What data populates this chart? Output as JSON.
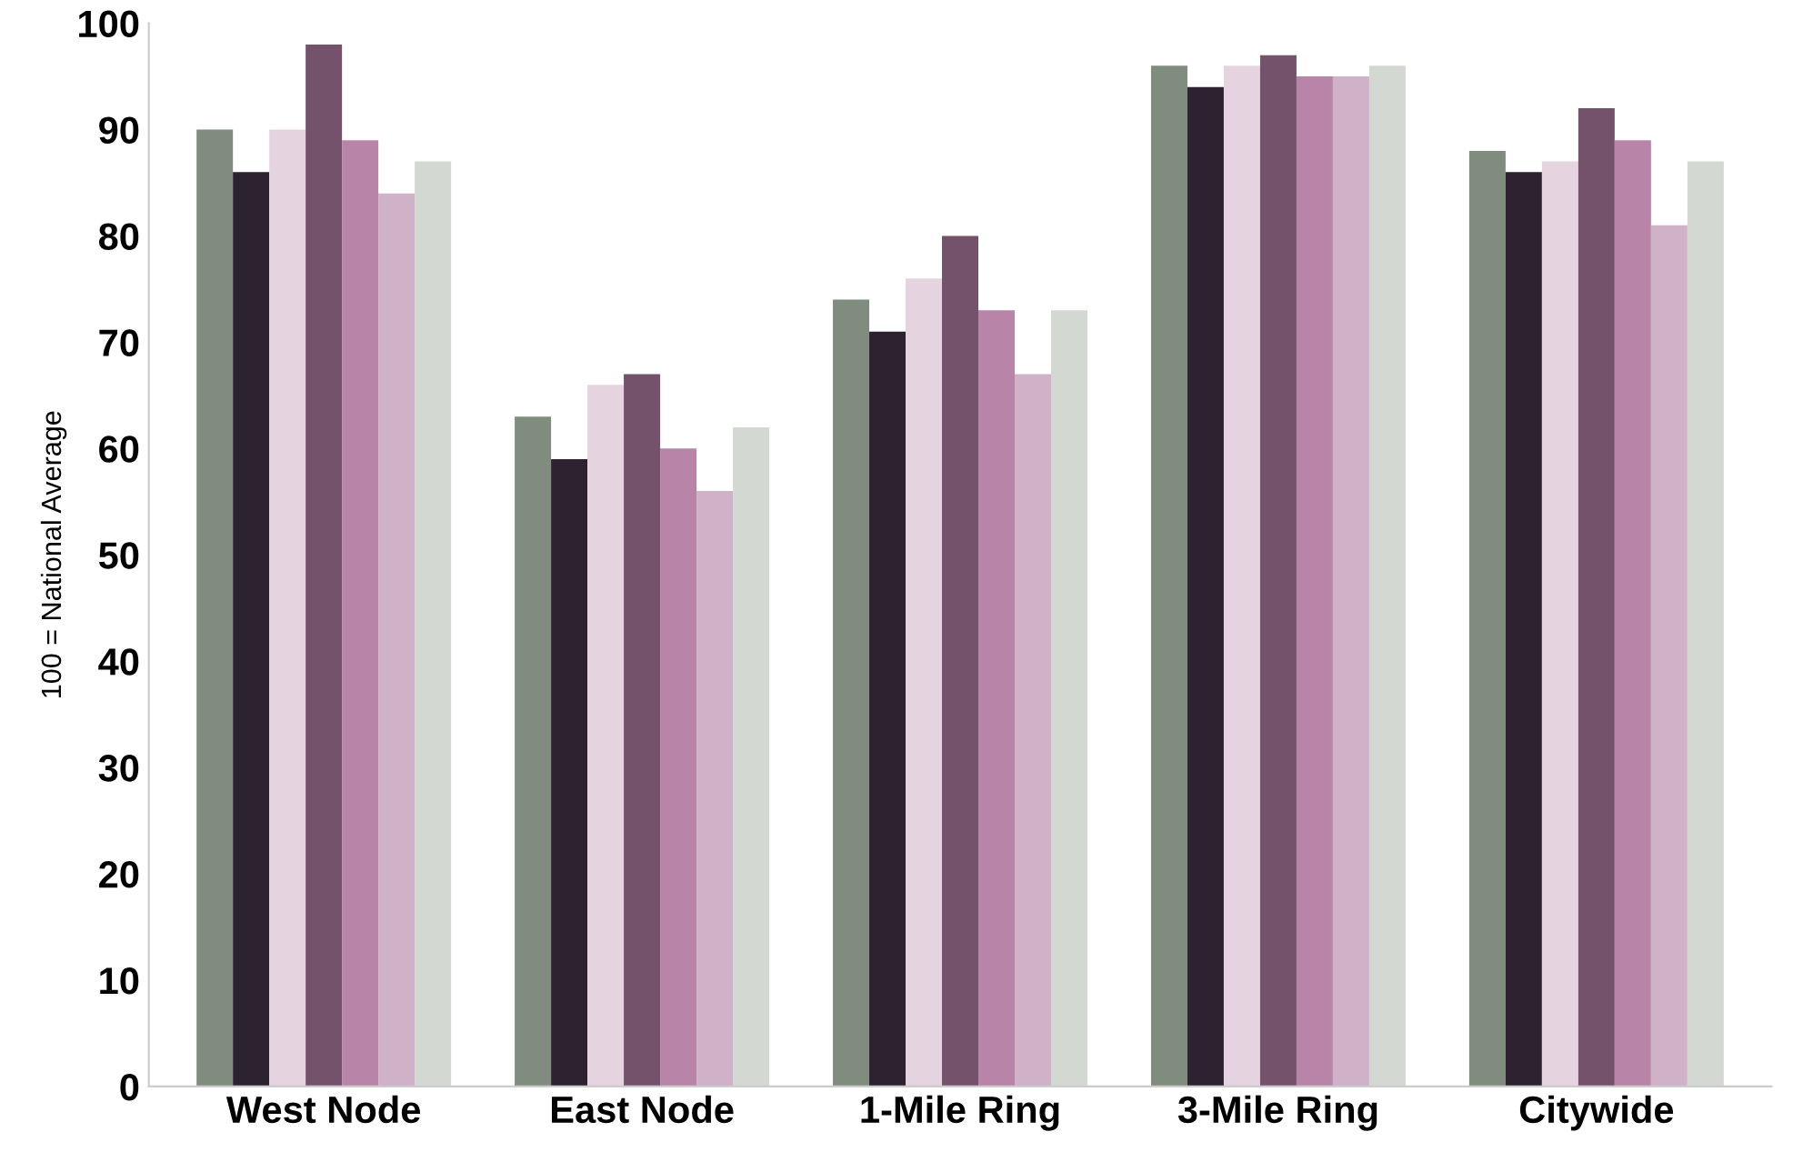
{
  "chart_data": {
    "type": "bar",
    "ylabel": "100 = National Average",
    "categories": [
      "West Node",
      "East Node",
      "1-Mile Ring",
      "3-Mile Ring",
      "Citywide"
    ],
    "series": [
      {
        "color": "#7f8c7e",
        "values": [
          90,
          63,
          74,
          96,
          88
        ]
      },
      {
        "color": "#2d2330",
        "values": [
          86,
          59,
          71,
          94,
          86
        ]
      },
      {
        "color": "#e6d3e0",
        "values": [
          90,
          66,
          76,
          96,
          87
        ]
      },
      {
        "color": "#74526b",
        "values": [
          98,
          67,
          80,
          97,
          92
        ]
      },
      {
        "color": "#b885a8",
        "values": [
          89,
          60,
          73,
          95,
          89
        ]
      },
      {
        "color": "#cfb1c8",
        "values": [
          84,
          56,
          67,
          95,
          81
        ]
      },
      {
        "color": "#d3d8d3",
        "values": [
          87,
          62,
          73,
          96,
          87
        ]
      }
    ],
    "ylim": [
      0,
      100
    ],
    "yticks": [
      0,
      10,
      20,
      30,
      40,
      50,
      60,
      70,
      80,
      90,
      100
    ],
    "grid": false
  }
}
